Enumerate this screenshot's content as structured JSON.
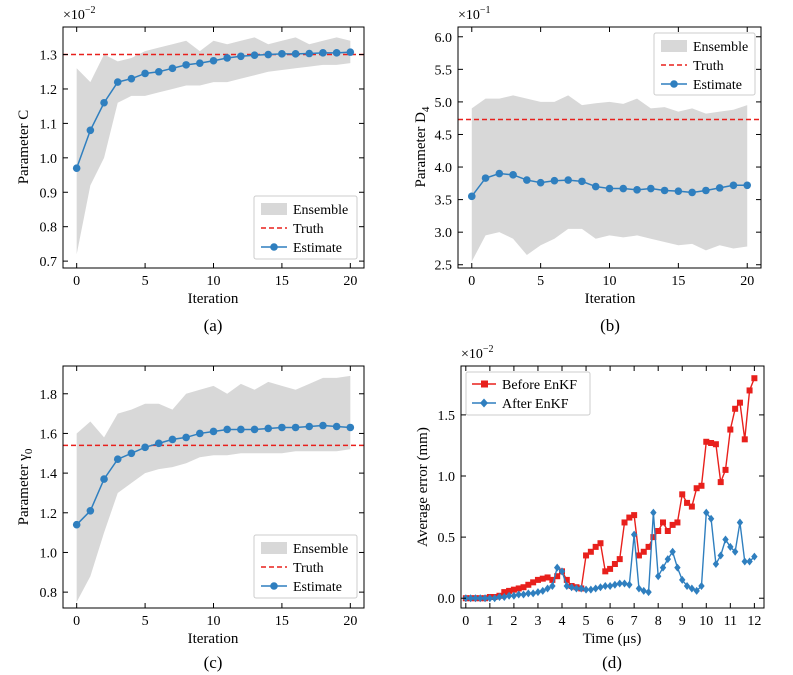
{
  "chart_data": [
    {
      "id": "a",
      "type": "line",
      "subcaption": "(a)",
      "xlabel": "Iteration",
      "ylabel_main": "Parameter C",
      "ylabel_sub": "",
      "offset_base": "×10",
      "offset_exp": "−2",
      "xlim": [
        -1,
        21
      ],
      "ylim": [
        0.68,
        1.38
      ],
      "xticks": [
        0,
        5,
        10,
        15,
        20
      ],
      "yticks": [
        0.7,
        0.8,
        0.9,
        1.0,
        1.1,
        1.2,
        1.3
      ],
      "ytick_labels": [
        "0.7",
        "0.8",
        "0.9",
        "1.0",
        "1.1",
        "1.2",
        "1.3"
      ],
      "legend_position": "lower-right",
      "legend": [
        "Ensemble",
        "Truth",
        "Estimate"
      ],
      "truth": 1.3,
      "x": [
        0,
        1,
        2,
        3,
        4,
        5,
        6,
        7,
        8,
        9,
        10,
        11,
        12,
        13,
        14,
        15,
        16,
        17,
        18,
        19,
        20
      ],
      "estimate": [
        0.97,
        1.08,
        1.16,
        1.22,
        1.23,
        1.245,
        1.25,
        1.26,
        1.27,
        1.275,
        1.282,
        1.29,
        1.295,
        1.298,
        1.3,
        1.302,
        1.302,
        1.303,
        1.305,
        1.305,
        1.307
      ],
      "ensemble_upper": [
        1.26,
        1.22,
        1.3,
        1.28,
        1.29,
        1.31,
        1.32,
        1.33,
        1.34,
        1.31,
        1.34,
        1.33,
        1.34,
        1.35,
        1.33,
        1.34,
        1.35,
        1.33,
        1.34,
        1.35,
        1.34
      ],
      "ensemble_lower": [
        0.72,
        0.92,
        1.0,
        1.16,
        1.18,
        1.18,
        1.19,
        1.2,
        1.21,
        1.21,
        1.22,
        1.22,
        1.23,
        1.24,
        1.25,
        1.255,
        1.26,
        1.265,
        1.27,
        1.27,
        1.275
      ]
    },
    {
      "id": "b",
      "type": "line",
      "subcaption": "(b)",
      "xlabel": "Iteration",
      "ylabel_main": "Parameter D",
      "ylabel_sub": "4",
      "offset_base": "×10",
      "offset_exp": "−1",
      "xlim": [
        -1,
        21
      ],
      "ylim": [
        2.45,
        6.15
      ],
      "xticks": [
        0,
        5,
        10,
        15,
        20
      ],
      "yticks": [
        2.5,
        3.0,
        3.5,
        4.0,
        4.5,
        5.0,
        5.5,
        6.0
      ],
      "ytick_labels": [
        "2.5",
        "3.0",
        "3.5",
        "4.0",
        "4.5",
        "5.0",
        "5.5",
        "6.0"
      ],
      "legend_position": "top-right",
      "legend": [
        "Ensemble",
        "Truth",
        "Estimate"
      ],
      "truth": 4.73,
      "x": [
        0,
        1,
        2,
        3,
        4,
        5,
        6,
        7,
        8,
        9,
        10,
        11,
        12,
        13,
        14,
        15,
        16,
        17,
        18,
        19,
        20
      ],
      "estimate": [
        3.55,
        3.83,
        3.9,
        3.88,
        3.8,
        3.76,
        3.79,
        3.8,
        3.78,
        3.7,
        3.67,
        3.67,
        3.65,
        3.67,
        3.64,
        3.63,
        3.61,
        3.64,
        3.68,
        3.72,
        3.72
      ],
      "ensemble_upper": [
        4.9,
        5.05,
        5.05,
        5.1,
        5.05,
        5.0,
        5.0,
        5.1,
        4.95,
        4.98,
        5.0,
        4.97,
        5.05,
        4.9,
        4.92,
        4.85,
        4.9,
        4.82,
        4.85,
        4.88,
        4.95
      ],
      "ensemble_lower": [
        2.55,
        2.95,
        3.0,
        2.9,
        2.65,
        2.8,
        2.9,
        3.05,
        3.05,
        2.9,
        2.95,
        2.92,
        2.95,
        2.9,
        2.85,
        2.8,
        2.82,
        2.72,
        2.8,
        2.75,
        2.78
      ]
    },
    {
      "id": "c",
      "type": "line",
      "subcaption": "(c)",
      "xlabel": "Iteration",
      "ylabel_main": "Parameter γ",
      "ylabel_sub": "0",
      "offset_base": "",
      "offset_exp": "",
      "xlim": [
        -1,
        21
      ],
      "ylim": [
        0.72,
        1.94
      ],
      "xticks": [
        0,
        5,
        10,
        15,
        20
      ],
      "yticks": [
        0.8,
        1.0,
        1.2,
        1.4,
        1.6,
        1.8
      ],
      "ytick_labels": [
        "0.8",
        "1.0",
        "1.2",
        "1.4",
        "1.6",
        "1.8"
      ],
      "legend_position": "lower-right",
      "legend": [
        "Ensemble",
        "Truth",
        "Estimate"
      ],
      "truth": 1.54,
      "x": [
        0,
        1,
        2,
        3,
        4,
        5,
        6,
        7,
        8,
        9,
        10,
        11,
        12,
        13,
        14,
        15,
        16,
        17,
        18,
        19,
        20
      ],
      "estimate": [
        1.14,
        1.21,
        1.37,
        1.47,
        1.5,
        1.53,
        1.55,
        1.57,
        1.58,
        1.6,
        1.61,
        1.62,
        1.62,
        1.62,
        1.625,
        1.63,
        1.63,
        1.635,
        1.64,
        1.635,
        1.63
      ],
      "ensemble_upper": [
        1.6,
        1.66,
        1.58,
        1.7,
        1.72,
        1.75,
        1.75,
        1.72,
        1.8,
        1.82,
        1.84,
        1.8,
        1.85,
        1.82,
        1.86,
        1.84,
        1.82,
        1.85,
        1.88,
        1.88,
        1.89
      ],
      "ensemble_lower": [
        0.75,
        0.88,
        1.1,
        1.3,
        1.35,
        1.4,
        1.42,
        1.43,
        1.45,
        1.48,
        1.49,
        1.49,
        1.5,
        1.5,
        1.5,
        1.5,
        1.51,
        1.51,
        1.51,
        1.51,
        1.52
      ]
    },
    {
      "id": "d",
      "type": "line",
      "subcaption": "(d)",
      "xlabel": "Time (μs)",
      "ylabel_main": "Average error (mm)",
      "ylabel_sub": "",
      "offset_base": "×10",
      "offset_exp": "−2",
      "xlim": [
        -0.2,
        12.4
      ],
      "ylim": [
        -0.08,
        1.9
      ],
      "xticks": [
        0,
        1,
        2,
        3,
        4,
        5,
        6,
        7,
        8,
        9,
        10,
        11,
        12
      ],
      "yticks": [
        0.0,
        0.5,
        1.0,
        1.5
      ],
      "ytick_labels": [
        "0.0",
        "0.5",
        "1.0",
        "1.5"
      ],
      "legend_position": "top-left",
      "series": [
        {
          "name": "Before EnKF",
          "color": "#e8201c",
          "marker": "square",
          "x": [
            0,
            0.2,
            0.4,
            0.6,
            0.8,
            1.0,
            1.2,
            1.4,
            1.6,
            1.8,
            2.0,
            2.2,
            2.4,
            2.6,
            2.8,
            3.0,
            3.2,
            3.4,
            3.6,
            3.8,
            4.0,
            4.2,
            4.4,
            4.6,
            4.8,
            5.0,
            5.2,
            5.4,
            5.6,
            5.8,
            6.0,
            6.2,
            6.4,
            6.6,
            6.8,
            7.0,
            7.2,
            7.4,
            7.6,
            7.8,
            8.0,
            8.2,
            8.4,
            8.6,
            8.8,
            9.0,
            9.2,
            9.4,
            9.6,
            9.8,
            10.0,
            10.2,
            10.4,
            10.6,
            10.8,
            11.0,
            11.2,
            11.4,
            11.6,
            11.8,
            12.0
          ],
          "y": [
            0.0,
            0.0,
            0.0,
            0.0,
            0.0,
            0.01,
            0.01,
            0.02,
            0.05,
            0.06,
            0.07,
            0.08,
            0.09,
            0.11,
            0.13,
            0.15,
            0.16,
            0.17,
            0.15,
            0.18,
            0.22,
            0.15,
            0.1,
            0.09,
            0.08,
            0.35,
            0.38,
            0.42,
            0.45,
            0.22,
            0.24,
            0.28,
            0.32,
            0.62,
            0.66,
            0.68,
            0.35,
            0.38,
            0.42,
            0.5,
            0.55,
            0.62,
            0.55,
            0.6,
            0.62,
            0.85,
            0.78,
            0.75,
            0.9,
            0.92,
            1.28,
            1.27,
            1.26,
            0.95,
            1.05,
            1.38,
            1.55,
            1.6,
            1.3,
            1.7,
            1.8
          ]
        },
        {
          "name": "After EnKF",
          "color": "#2f7fbf",
          "marker": "diamond",
          "x": [
            0,
            0.2,
            0.4,
            0.6,
            0.8,
            1.0,
            1.2,
            1.4,
            1.6,
            1.8,
            2.0,
            2.2,
            2.4,
            2.6,
            2.8,
            3.0,
            3.2,
            3.4,
            3.6,
            3.8,
            4.0,
            4.2,
            4.4,
            4.6,
            4.8,
            5.0,
            5.2,
            5.4,
            5.6,
            5.8,
            6.0,
            6.2,
            6.4,
            6.6,
            6.8,
            7.0,
            7.2,
            7.4,
            7.6,
            7.8,
            8.0,
            8.2,
            8.4,
            8.6,
            8.8,
            9.0,
            9.2,
            9.4,
            9.6,
            9.8,
            10.0,
            10.2,
            10.4,
            10.6,
            10.8,
            11.0,
            11.2,
            11.4,
            11.6,
            11.8,
            12.0
          ],
          "y": [
            0.0,
            0.0,
            0.0,
            0.0,
            0.0,
            0.0,
            0.0,
            0.01,
            0.01,
            0.02,
            0.02,
            0.03,
            0.03,
            0.04,
            0.04,
            0.05,
            0.06,
            0.08,
            0.1,
            0.25,
            0.22,
            0.1,
            0.09,
            0.08,
            0.08,
            0.07,
            0.07,
            0.08,
            0.09,
            0.1,
            0.1,
            0.11,
            0.12,
            0.12,
            0.11,
            0.52,
            0.08,
            0.06,
            0.05,
            0.7,
            0.18,
            0.25,
            0.32,
            0.38,
            0.25,
            0.15,
            0.1,
            0.08,
            0.06,
            0.1,
            0.7,
            0.65,
            0.28,
            0.35,
            0.48,
            0.42,
            0.38,
            0.62,
            0.3,
            0.3,
            0.34
          ]
        }
      ]
    }
  ]
}
